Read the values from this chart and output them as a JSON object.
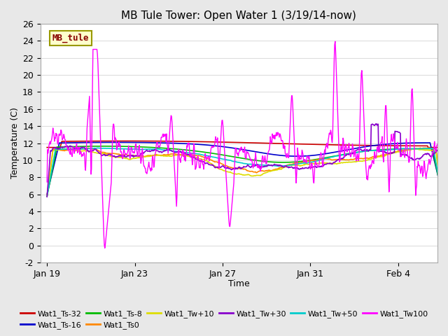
{
  "title": "MB Tule Tower: Open Water 1 (3/19/14-now)",
  "xlabel": "Time",
  "ylabel": "Temperature (C)",
  "ylim": [
    -2,
    26
  ],
  "yticks": [
    -2,
    0,
    2,
    4,
    6,
    8,
    10,
    12,
    14,
    16,
    18,
    20,
    22,
    24,
    26
  ],
  "xtick_labels": [
    "Jan 19",
    "Jan 23",
    "Jan 27",
    "Jan 31",
    "Feb 4"
  ],
  "xtick_positions": [
    0,
    4,
    8,
    12,
    16
  ],
  "fig_bg_color": "#e8e8e8",
  "plot_bg_color": "#ffffff",
  "grid_color": "#dddddd",
  "series": {
    "Wat1_Ts-32": {
      "color": "#cc0000",
      "lw": 1.2
    },
    "Wat1_Ts-16": {
      "color": "#0000cc",
      "lw": 1.2
    },
    "Wat1_Ts-8": {
      "color": "#00bb00",
      "lw": 1.2
    },
    "Wat1_Ts0": {
      "color": "#ff8800",
      "lw": 1.2
    },
    "Wat1_Tw+10": {
      "color": "#dddd00",
      "lw": 1.2
    },
    "Wat1_Tw+30": {
      "color": "#8800cc",
      "lw": 1.2
    },
    "Wat1_Tw+50": {
      "color": "#00cccc",
      "lw": 1.2
    },
    "Wat1_Tw100": {
      "color": "#ff00ff",
      "lw": 1.0
    }
  },
  "legend_label": "MB_tule",
  "legend_bg": "#ffffcc",
  "legend_border": "#999900"
}
